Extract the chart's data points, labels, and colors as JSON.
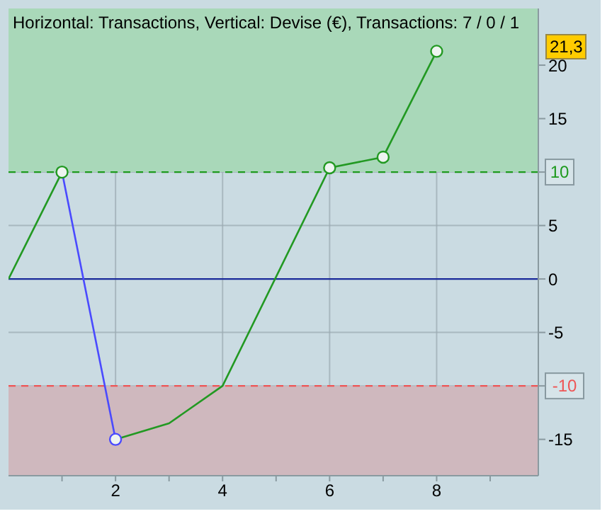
{
  "chart_data": {
    "type": "line",
    "title": "Horizontal: Transactions, Vertical: Devise (€), Transactions: 7 / 0 / 1",
    "xlim": [
      0,
      9.9
    ],
    "xticks": [
      {
        "value": 1,
        "label": null
      },
      2,
      {
        "value": 3,
        "label": null
      },
      4,
      {
        "value": 5,
        "label": null
      },
      6,
      {
        "value": 7,
        "label": null
      },
      8,
      {
        "value": 9,
        "label": null
      }
    ],
    "ylim": [
      -18.4,
      25.3
    ],
    "yticks": [
      -15,
      {
        "value": -10,
        "label": null
      },
      -5,
      0,
      5,
      {
        "value": 10,
        "label": null
      },
      15,
      20
    ],
    "grid": true,
    "marker": "none",
    "series": [
      {
        "x": [
          0,
          1
        ],
        "values": [
          0,
          10
        ],
        "color": "#229922"
      },
      {
        "x": [
          1,
          2
        ],
        "values": [
          10,
          -15
        ],
        "color": "#4a4aff"
      },
      {
        "x": [
          2,
          3,
          4,
          6,
          7,
          8
        ],
        "values": [
          -15,
          -13.5,
          -10,
          10.4,
          11.4,
          21.3
        ],
        "color": "#229922"
      },
      {
        "type": "scatter",
        "marker": "circle",
        "x": [
          1,
          2,
          6,
          7,
          8
        ],
        "values": [
          10,
          -15,
          10.4,
          11.4,
          21.3
        ],
        "colors": [
          "#229922",
          "#4a4aff",
          "#229922",
          "#229922",
          "#229922"
        ]
      }
    ],
    "ref_lines": [
      {
        "axis": "y",
        "value": 0,
        "color": "#1a2a9a",
        "line_style": "solid"
      },
      {
        "axis": "y",
        "value": 10,
        "label": "10",
        "color": "#1e9a1e",
        "line_style": "dashed"
      },
      {
        "axis": "y",
        "value": -10,
        "label": "-10",
        "color": "#ee5555",
        "line_style": "dashed"
      }
    ],
    "bands": [
      {
        "axis": "y",
        "from": 10,
        "to": 25.3,
        "color": "#a9d8b9"
      },
      {
        "axis": "y",
        "from": -18.4,
        "to": -10,
        "color": "#cfb8be"
      }
    ],
    "annotations": [
      "21,3"
    ]
  }
}
